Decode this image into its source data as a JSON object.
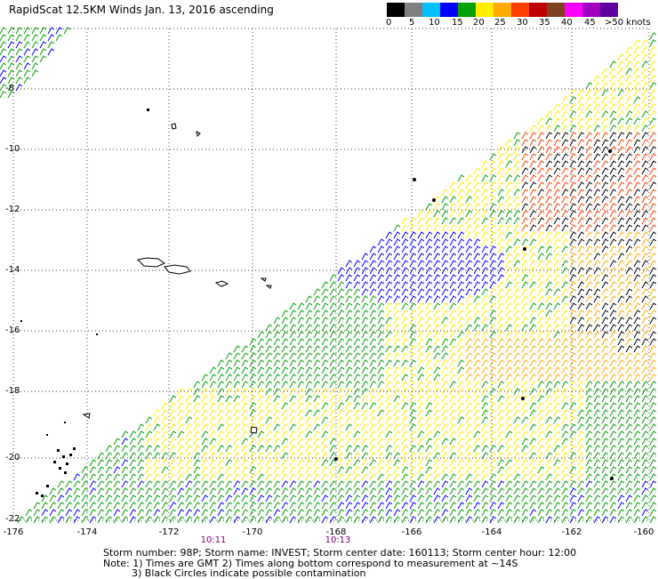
{
  "title": "RapidScat 12.5KM Winds Jan. 13, 2016 ascending",
  "legend": {
    "labels": [
      "0",
      "5",
      "10",
      "15",
      "20",
      "25",
      "30",
      "35",
      "40",
      "45",
      ">50 knots"
    ],
    "colors": [
      "#000000",
      "#808080",
      "#00c0ff",
      "#0000ff",
      "#00a000",
      "#ffee00",
      "#ffaa00",
      "#ff4000",
      "#c00000",
      "#804020",
      "#ff00ff",
      "#a000c0",
      "#6000a0"
    ]
  },
  "axes": {
    "lat_labels": [
      "-8",
      "-10",
      "-12",
      "-14",
      "-16",
      "-18",
      "-20",
      "-22"
    ],
    "lon_labels": [
      "-176",
      "-174",
      "-172",
      "-170",
      "-168",
      "-166",
      "-164",
      "-162",
      "-160"
    ]
  },
  "times": [
    "10:11",
    "10:13"
  ],
  "storm_info": "Storm number: 98P;  Storm name: INVEST;  Storm center date: 160113;  Storm center hour: 12:00",
  "notes": [
    "Note: 1) Times are GMT  2) Times along bottom correspond to measurement at ~14S",
    "3) Black Circles indicate possible contamination"
  ],
  "wind_colors": {
    "low": "#0000ff",
    "mid": "#00a000",
    "high": "#ffee00",
    "higher": "#ffaa00",
    "strong": "#ff4000",
    "storm": "#000000"
  }
}
